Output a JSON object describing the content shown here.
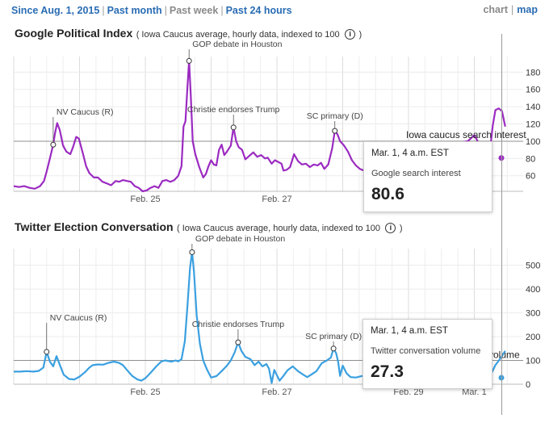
{
  "nav": {
    "since_aug": "Since Aug. 1, 2015",
    "past_month": "Past month",
    "past_week": "Past week",
    "past_24_hours": "Past 24 hours",
    "sep": "|"
  },
  "view_toggle": {
    "chart": "chart",
    "map": "map",
    "sep": "|"
  },
  "info_glyph": "i",
  "charts": {
    "google": {
      "title": "Google Political Index",
      "subtitle": "( Iowa Caucus average, hourly data, indexed to 100",
      "subtitle_close": ")",
      "baseline_label": "Iowa caucus search interest",
      "tooltip": {
        "time": "Mar. 1, 4 a.m. EST",
        "label": "Google search interest",
        "value": "80.6"
      }
    },
    "twitter": {
      "title": "Twitter Election Conversation",
      "subtitle": "( Iowa Caucus average, hourly data, indexed to 100",
      "subtitle_close": ")",
      "baseline_label_partial": "volume",
      "tooltip": {
        "time": "Mar. 1, 4 a.m. EST",
        "label": "Twitter conversation volume",
        "value": "27.3"
      }
    }
  },
  "colors": {
    "google_line": "#9b2bc1",
    "twitter_line": "#3aa0e0",
    "nav_link": "#2a6cb3",
    "grid": "#e3e3e3",
    "baseline": "#8f8f8f"
  },
  "chart_data": [
    {
      "type": "line",
      "x_unit": "days since Feb. 23, 2016 00:00",
      "x_tick_labels": [
        "Feb. 25",
        "Feb. 27",
        "Feb. 29",
        "Mar. 1"
      ],
      "x_ticks": [
        2,
        4,
        6,
        7
      ],
      "ylim": [
        42,
        195
      ],
      "y_ticks": [
        60,
        80,
        100,
        120,
        140,
        160,
        180
      ],
      "baseline": 100,
      "series": [
        {
          "name": "Google search interest",
          "points": [
            [
              0.0,
              48
            ],
            [
              0.08,
              47
            ],
            [
              0.16,
              48
            ],
            [
              0.24,
              46
            ],
            [
              0.32,
              45
            ],
            [
              0.4,
              48
            ],
            [
              0.46,
              54
            ],
            [
              0.5,
              65
            ],
            [
              0.55,
              80
            ],
            [
              0.6,
              96
            ],
            [
              0.63,
              110
            ],
            [
              0.66,
              121
            ],
            [
              0.7,
              113
            ],
            [
              0.75,
              95
            ],
            [
              0.8,
              88
            ],
            [
              0.86,
              85
            ],
            [
              0.9,
              93
            ],
            [
              0.95,
              105
            ],
            [
              0.99,
              103
            ],
            [
              1.05,
              86
            ],
            [
              1.1,
              71
            ],
            [
              1.15,
              63
            ],
            [
              1.22,
              58
            ],
            [
              1.28,
              58
            ],
            [
              1.35,
              53
            ],
            [
              1.42,
              51
            ],
            [
              1.48,
              49
            ],
            [
              1.55,
              54
            ],
            [
              1.6,
              53
            ],
            [
              1.66,
              55
            ],
            [
              1.72,
              54
            ],
            [
              1.78,
              53
            ],
            [
              1.84,
              48
            ],
            [
              1.9,
              46
            ],
            [
              1.96,
              42
            ],
            [
              2.02,
              43
            ],
            [
              2.08,
              46
            ],
            [
              2.14,
              48
            ],
            [
              2.2,
              46
            ],
            [
              2.26,
              54
            ],
            [
              2.32,
              55
            ],
            [
              2.38,
              53
            ],
            [
              2.44,
              55
            ],
            [
              2.5,
              60
            ],
            [
              2.55,
              71
            ],
            [
              2.58,
              117
            ],
            [
              2.61,
              123
            ],
            [
              2.64,
              163
            ],
            [
              2.665,
              193
            ],
            [
              2.69,
              155
            ],
            [
              2.72,
              100
            ],
            [
              2.76,
              85
            ],
            [
              2.82,
              70
            ],
            [
              2.88,
              58
            ],
            [
              2.92,
              62
            ],
            [
              2.96,
              71
            ],
            [
              3.0,
              78
            ],
            [
              3.04,
              73
            ],
            [
              3.08,
              72
            ],
            [
              3.12,
              90
            ],
            [
              3.16,
              96
            ],
            [
              3.2,
              84
            ],
            [
              3.24,
              88
            ],
            [
              3.3,
              95
            ],
            [
              3.34,
              116
            ],
            [
              3.38,
              100
            ],
            [
              3.42,
              93
            ],
            [
              3.47,
              90
            ],
            [
              3.52,
              79
            ],
            [
              3.58,
              83
            ],
            [
              3.64,
              87
            ],
            [
              3.7,
              82
            ],
            [
              3.76,
              84
            ],
            [
              3.82,
              80
            ],
            [
              3.86,
              81
            ],
            [
              3.92,
              74
            ],
            [
              3.97,
              78
            ],
            [
              4.02,
              76
            ],
            [
              4.07,
              74
            ],
            [
              4.1,
              66
            ],
            [
              4.15,
              67
            ],
            [
              4.2,
              70
            ],
            [
              4.26,
              85
            ],
            [
              4.32,
              77
            ],
            [
              4.38,
              73
            ],
            [
              4.44,
              74
            ],
            [
              4.5,
              70
            ],
            [
              4.56,
              73
            ],
            [
              4.62,
              72
            ],
            [
              4.67,
              75
            ],
            [
              4.72,
              68
            ],
            [
              4.78,
              73
            ],
            [
              4.84,
              92
            ],
            [
              4.88,
              112
            ],
            [
              4.92,
              108
            ],
            [
              4.96,
              100
            ],
            [
              5.02,
              95
            ],
            [
              5.08,
              88
            ],
            [
              5.14,
              78
            ],
            [
              5.2,
              72
            ],
            [
              5.26,
              68
            ],
            [
              5.32,
              66
            ],
            [
              5.38,
              70
            ],
            [
              5.42,
              82
            ],
            [
              5.5,
              95
            ],
            [
              5.8,
              96
            ],
            [
              6.2,
              94
            ],
            [
              6.5,
              95
            ],
            [
              6.9,
              100
            ],
            [
              7.0,
              107
            ],
            [
              7.05,
              100
            ],
            [
              7.1,
              91
            ],
            [
              7.15,
              84
            ],
            [
              7.19,
              80
            ],
            [
              7.23,
              83
            ],
            [
              7.28,
              118
            ],
            [
              7.32,
              136
            ],
            [
              7.37,
              138
            ],
            [
              7.42,
              135
            ],
            [
              7.47,
              117
            ]
          ]
        }
      ]
    },
    {
      "type": "line",
      "x_unit": "days since Feb. 23, 2016 00:00",
      "x_tick_labels": [
        "Feb. 25",
        "Feb. 27",
        "Feb. 29",
        "Mar. 1"
      ],
      "x_ticks": [
        2,
        4,
        6,
        7
      ],
      "ylim": [
        0,
        560
      ],
      "y_ticks": [
        0,
        100,
        200,
        300,
        400,
        500
      ],
      "baseline": 100,
      "series": [
        {
          "name": "Twitter conversation volume",
          "points": [
            [
              0.0,
              53
            ],
            [
              0.1,
              53
            ],
            [
              0.2,
              55
            ],
            [
              0.3,
              53
            ],
            [
              0.38,
              56
            ],
            [
              0.45,
              70
            ],
            [
              0.5,
              136
            ],
            [
              0.55,
              95
            ],
            [
              0.6,
              75
            ],
            [
              0.65,
              118
            ],
            [
              0.7,
              82
            ],
            [
              0.76,
              40
            ],
            [
              0.84,
              22
            ],
            [
              0.92,
              20
            ],
            [
              1.0,
              32
            ],
            [
              1.08,
              50
            ],
            [
              1.15,
              70
            ],
            [
              1.2,
              80
            ],
            [
              1.28,
              83
            ],
            [
              1.36,
              82
            ],
            [
              1.44,
              90
            ],
            [
              1.52,
              95
            ],
            [
              1.6,
              90
            ],
            [
              1.66,
              80
            ],
            [
              1.72,
              60
            ],
            [
              1.8,
              35
            ],
            [
              1.88,
              20
            ],
            [
              1.94,
              15
            ],
            [
              2.0,
              25
            ],
            [
              2.08,
              48
            ],
            [
              2.16,
              73
            ],
            [
              2.24,
              95
            ],
            [
              2.3,
              100
            ],
            [
              2.4,
              95
            ],
            [
              2.46,
              100
            ],
            [
              2.5,
              96
            ],
            [
              2.55,
              105
            ],
            [
              2.6,
              180
            ],
            [
              2.64,
              330
            ],
            [
              2.68,
              490
            ],
            [
              2.71,
              555
            ],
            [
              2.74,
              470
            ],
            [
              2.78,
              290
            ],
            [
              2.83,
              170
            ],
            [
              2.88,
              100
            ],
            [
              2.94,
              60
            ],
            [
              3.0,
              28
            ],
            [
              3.08,
              34
            ],
            [
              3.16,
              55
            ],
            [
              3.24,
              78
            ],
            [
              3.3,
              100
            ],
            [
              3.36,
              135
            ],
            [
              3.41,
              176
            ],
            [
              3.46,
              140
            ],
            [
              3.52,
              115
            ],
            [
              3.6,
              105
            ],
            [
              3.66,
              80
            ],
            [
              3.72,
              95
            ],
            [
              3.78,
              75
            ],
            [
              3.84,
              85
            ],
            [
              3.88,
              65
            ],
            [
              3.92,
              5
            ],
            [
              3.96,
              60
            ],
            [
              4.04,
              15
            ],
            [
              4.1,
              35
            ],
            [
              4.16,
              58
            ],
            [
              4.24,
              75
            ],
            [
              4.32,
              55
            ],
            [
              4.4,
              40
            ],
            [
              4.46,
              30
            ],
            [
              4.52,
              40
            ],
            [
              4.6,
              55
            ],
            [
              4.68,
              88
            ],
            [
              4.76,
              100
            ],
            [
              4.82,
              112
            ],
            [
              4.86,
              150
            ],
            [
              4.9,
              130
            ],
            [
              4.93,
              95
            ],
            [
              4.96,
              35
            ],
            [
              5.0,
              78
            ],
            [
              5.06,
              45
            ],
            [
              5.12,
              30
            ],
            [
              5.2,
              28
            ],
            [
              5.3,
              35
            ],
            [
              5.4,
              40
            ],
            [
              6.6,
              38
            ],
            [
              6.75,
              60
            ],
            [
              6.85,
              70
            ],
            [
              6.95,
              42
            ],
            [
              7.02,
              35
            ],
            [
              7.1,
              30
            ],
            [
              7.19,
              27
            ],
            [
              7.25,
              40
            ],
            [
              7.32,
              80
            ],
            [
              7.4,
              110
            ],
            [
              7.47,
              140
            ]
          ]
        }
      ]
    }
  ]
}
